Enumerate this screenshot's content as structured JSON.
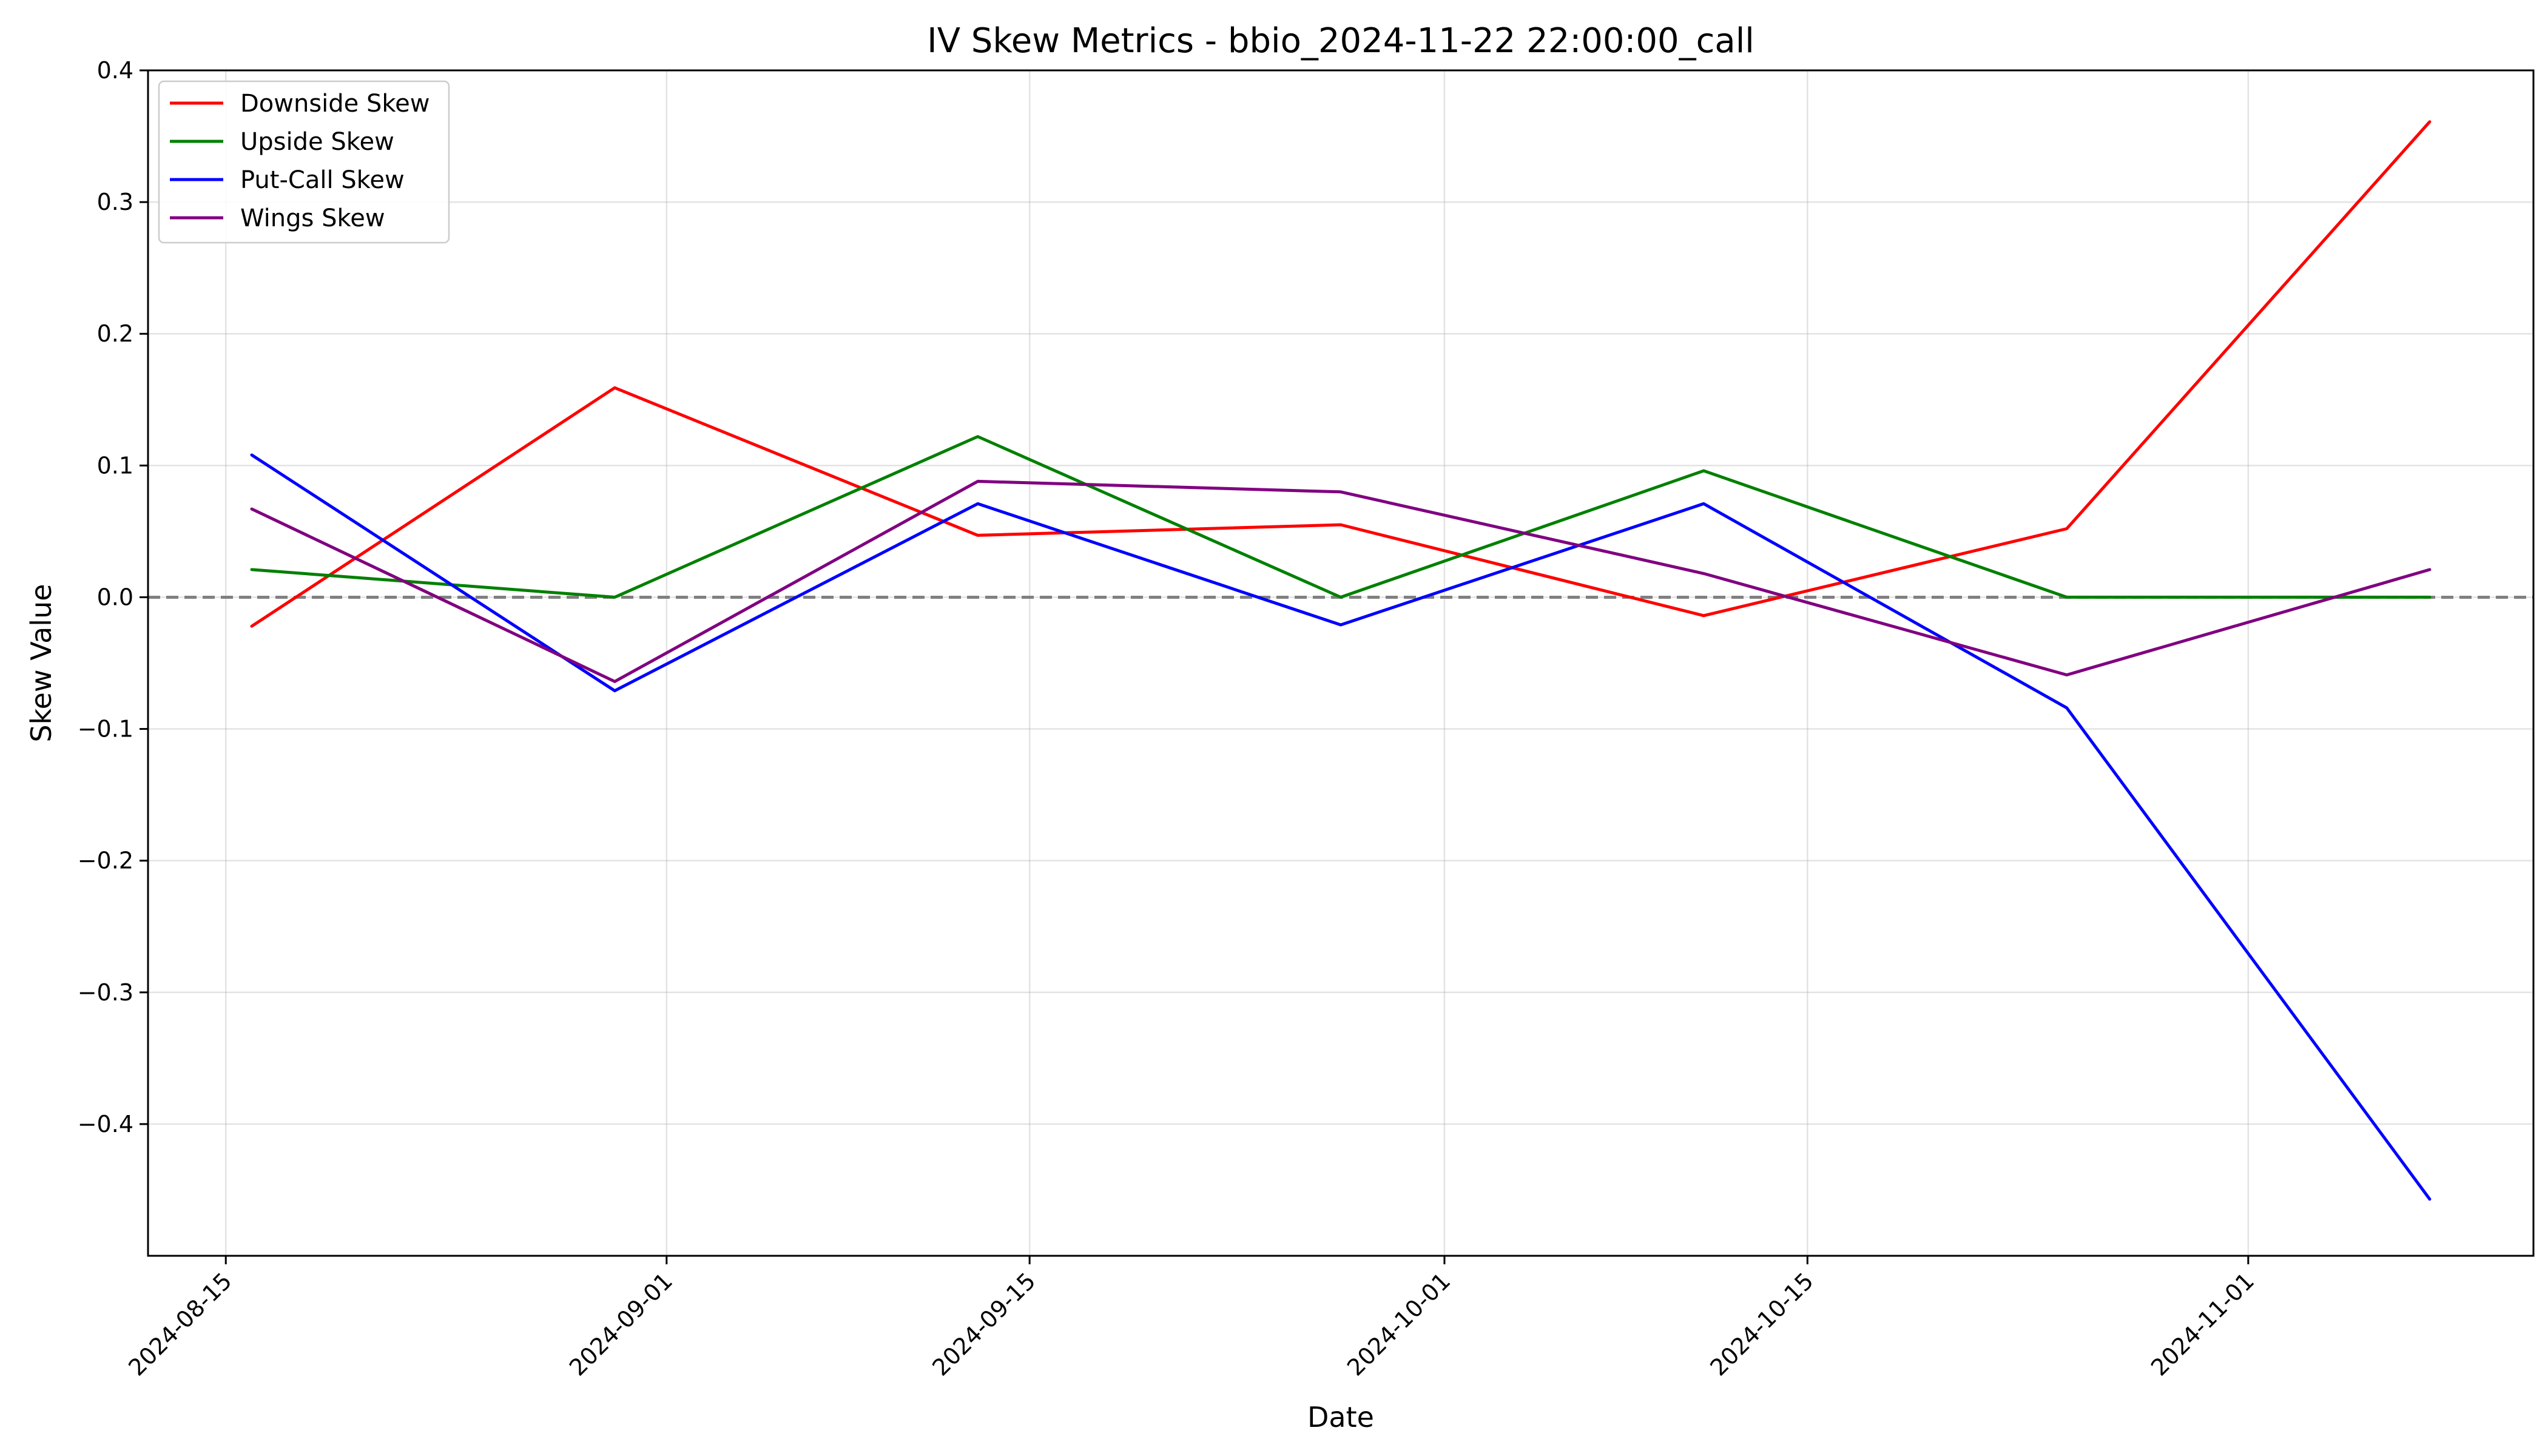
{
  "chart_data": {
    "type": "line",
    "title": "IV Skew Metrics - bbio_2024-11-22 22:00:00_call",
    "xlabel": "Date",
    "ylabel": "Skew Value",
    "x": [
      "2024-08-16",
      "2024-08-30",
      "2024-09-13",
      "2024-09-27",
      "2024-10-11",
      "2024-10-25",
      "2024-11-08"
    ],
    "x_ticks": [
      "2024-08-15",
      "2024-09-01",
      "2024-09-15",
      "2024-10-01",
      "2024-10-15",
      "2024-11-01"
    ],
    "xlim": [
      "2024-08-12",
      "2024-11-12"
    ],
    "y_ticks": [
      "0.4",
      "0.3",
      "0.2",
      "0.1",
      "0.0",
      "−0.1",
      "−0.2",
      "−0.3",
      "−0.4"
    ],
    "ylim": [
      -0.5,
      0.4
    ],
    "grid": true,
    "legend_position": "top-left",
    "reference_line": {
      "y": 0,
      "style": "dashed",
      "color": "#808080"
    },
    "series": [
      {
        "name": "Downside Skew",
        "color": "#ff0000",
        "values": [
          -0.022,
          0.159,
          0.047,
          0.055,
          -0.014,
          0.052,
          0.361
        ]
      },
      {
        "name": "Upside Skew",
        "color": "#008000",
        "values": [
          0.021,
          0.0,
          0.122,
          0.0,
          0.096,
          0.0,
          0.0
        ]
      },
      {
        "name": "Put-Call Skew",
        "color": "#0000ff",
        "values": [
          0.108,
          -0.071,
          0.071,
          -0.021,
          0.071,
          -0.084,
          -0.457
        ]
      },
      {
        "name": "Wings Skew",
        "color": "#800080",
        "values": [
          0.067,
          -0.064,
          0.088,
          0.08,
          0.018,
          -0.059,
          0.021
        ]
      }
    ]
  }
}
